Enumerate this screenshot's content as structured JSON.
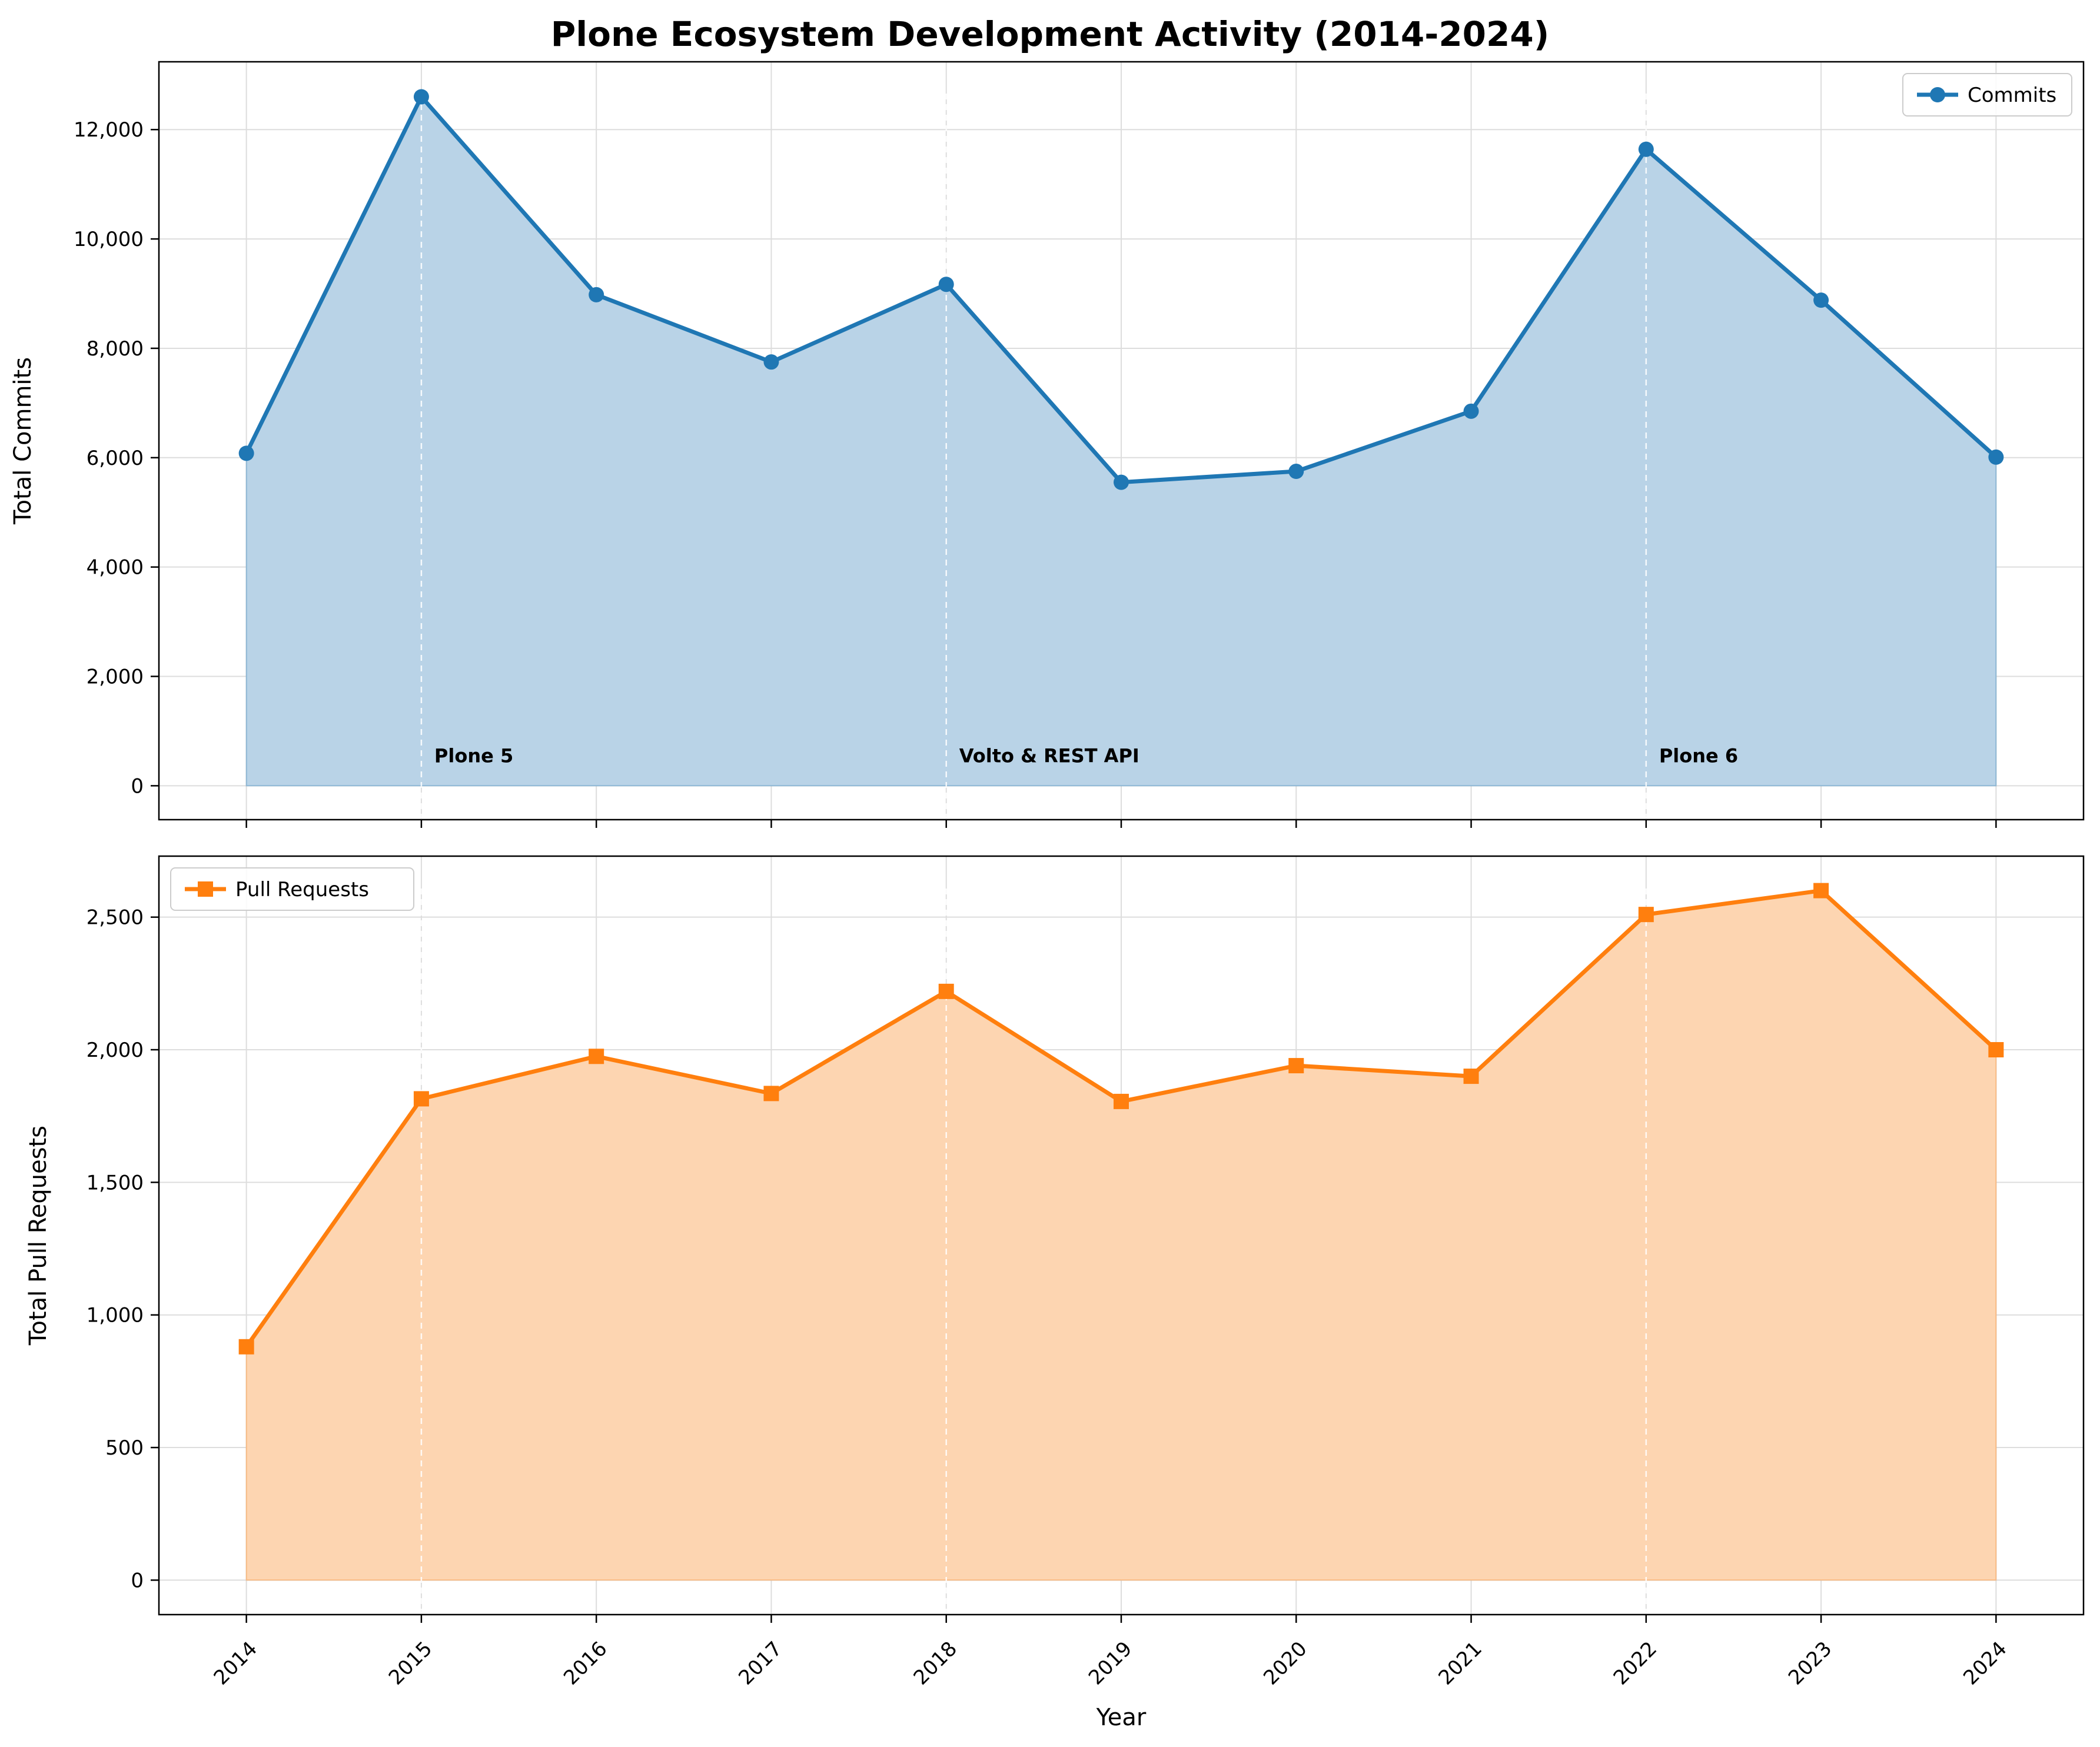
{
  "title": "Plone Ecosystem Development Activity (2014-2024)",
  "chart_data": [
    {
      "type": "area",
      "title": "",
      "xlabel": "",
      "ylabel": "Total Commits",
      "x": [
        2014,
        2015,
        2016,
        2017,
        2018,
        2019,
        2020,
        2021,
        2022,
        2023,
        2024
      ],
      "series": [
        {
          "name": "Commits",
          "color": "#1f77b4",
          "fill": "#b9d3e7",
          "marker": "circle",
          "values": [
            6080,
            12600,
            8980,
            7750,
            9170,
            5550,
            5750,
            6850,
            11640,
            8880,
            6010
          ]
        }
      ],
      "ylim": [
        -620,
        13240
      ],
      "yticks": [
        0,
        2000,
        4000,
        6000,
        8000,
        10000,
        12000
      ],
      "ytick_labels": [
        "0",
        "2,000",
        "4,000",
        "6,000",
        "8,000",
        "10,000",
        "12,000"
      ],
      "grid": true,
      "legend": "top-right",
      "annotations": [
        {
          "x": 2015,
          "text": "Plone 5"
        },
        {
          "x": 2018,
          "text": "Volto & REST API"
        },
        {
          "x": 2022,
          "text": "Plone 6"
        }
      ]
    },
    {
      "type": "area",
      "title": "",
      "xlabel": "Year",
      "ylabel": "Total Pull Requests",
      "x": [
        2014,
        2015,
        2016,
        2017,
        2018,
        2019,
        2020,
        2021,
        2022,
        2023,
        2024
      ],
      "xtick_labels": [
        "2014",
        "2015",
        "2016",
        "2017",
        "2018",
        "2019",
        "2020",
        "2021",
        "2022",
        "2023",
        "2024"
      ],
      "series": [
        {
          "name": "Pull Requests",
          "color": "#ff7f0e",
          "fill": "#fdd5b1",
          "marker": "square",
          "values": [
            880,
            1815,
            1975,
            1835,
            2220,
            1805,
            1940,
            1900,
            2510,
            2600,
            2000
          ]
        }
      ],
      "ylim": [
        -130,
        2730
      ],
      "yticks": [
        0,
        500,
        1000,
        1500,
        2000,
        2500
      ],
      "ytick_labels": [
        "0",
        "500",
        "1,000",
        "1,500",
        "2,000",
        "2,500"
      ],
      "grid": true,
      "legend": "top-left",
      "release_lines": [
        2015,
        2018,
        2022
      ]
    }
  ]
}
